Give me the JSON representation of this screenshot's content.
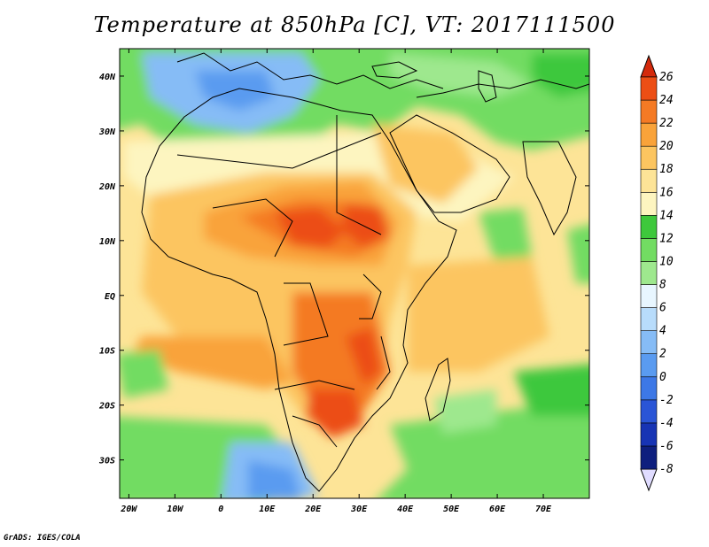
{
  "title": "Temperature at 850hPa [C], VT: 2017111500",
  "credit": "GrADS: IGES/COLA",
  "map": {
    "lon_range": [
      -22,
      80
    ],
    "lat_range": [
      -37,
      45
    ],
    "lon_ticks": [
      {
        "value": -20,
        "label": "20W"
      },
      {
        "value": -10,
        "label": "10W"
      },
      {
        "value": 0,
        "label": "0"
      },
      {
        "value": 10,
        "label": "10E"
      },
      {
        "value": 20,
        "label": "20E"
      },
      {
        "value": 30,
        "label": "30E"
      },
      {
        "value": 40,
        "label": "40E"
      },
      {
        "value": 50,
        "label": "50E"
      },
      {
        "value": 60,
        "label": "60E"
      },
      {
        "value": 70,
        "label": "70E"
      }
    ],
    "lat_ticks": [
      {
        "value": 40,
        "label": "40N"
      },
      {
        "value": 30,
        "label": "30N"
      },
      {
        "value": 20,
        "label": "20N"
      },
      {
        "value": 10,
        "label": "10N"
      },
      {
        "value": 0,
        "label": "EQ"
      },
      {
        "value": -10,
        "label": "10S"
      },
      {
        "value": -20,
        "label": "20S"
      },
      {
        "value": -30,
        "label": "30S"
      }
    ],
    "field": "temperature_850hPa",
    "units": "C"
  },
  "colorbar": {
    "levels": [
      -8,
      -6,
      -4,
      -2,
      0,
      2,
      4,
      6,
      8,
      10,
      12,
      14,
      16,
      18,
      20,
      22,
      24,
      26
    ],
    "labels": [
      "-8",
      "-6",
      "-4",
      "-2",
      "0",
      "2",
      "4",
      "6",
      "8",
      "10",
      "12",
      "14",
      "16",
      "18",
      "20",
      "22",
      "24",
      "26"
    ],
    "colors": [
      "#e0dcff",
      "#0e1f7e",
      "#1734b4",
      "#2a55d6",
      "#3d78e6",
      "#5a9bf0",
      "#86bcf6",
      "#b8dcfb",
      "#e8f6ff",
      "#9ee88e",
      "#72dc62",
      "#3ec83c",
      "#fdf5c0",
      "#fde497",
      "#fcc560",
      "#f9a33a",
      "#f47a24",
      "#ec4e15",
      "#d42a0c"
    ],
    "top_arrow_color": "#d42a0c",
    "bottom_arrow_color": "#e0dcff"
  }
}
